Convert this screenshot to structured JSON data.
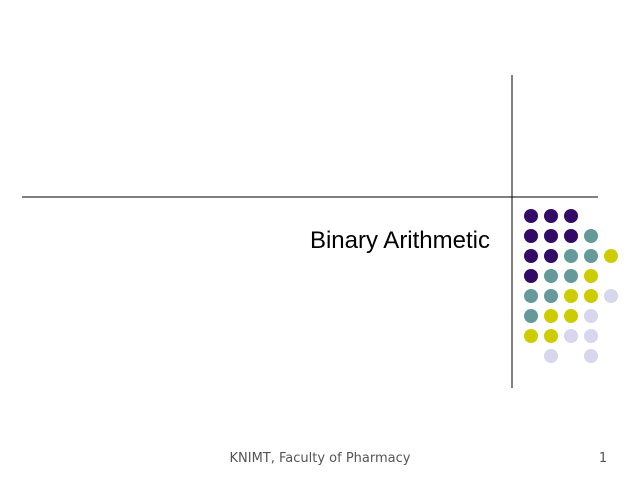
{
  "slide": {
    "title": "Binary Arithmetic",
    "footer": "KNIMT, Faculty of Pharmacy",
    "page_number": 1
  }
}
